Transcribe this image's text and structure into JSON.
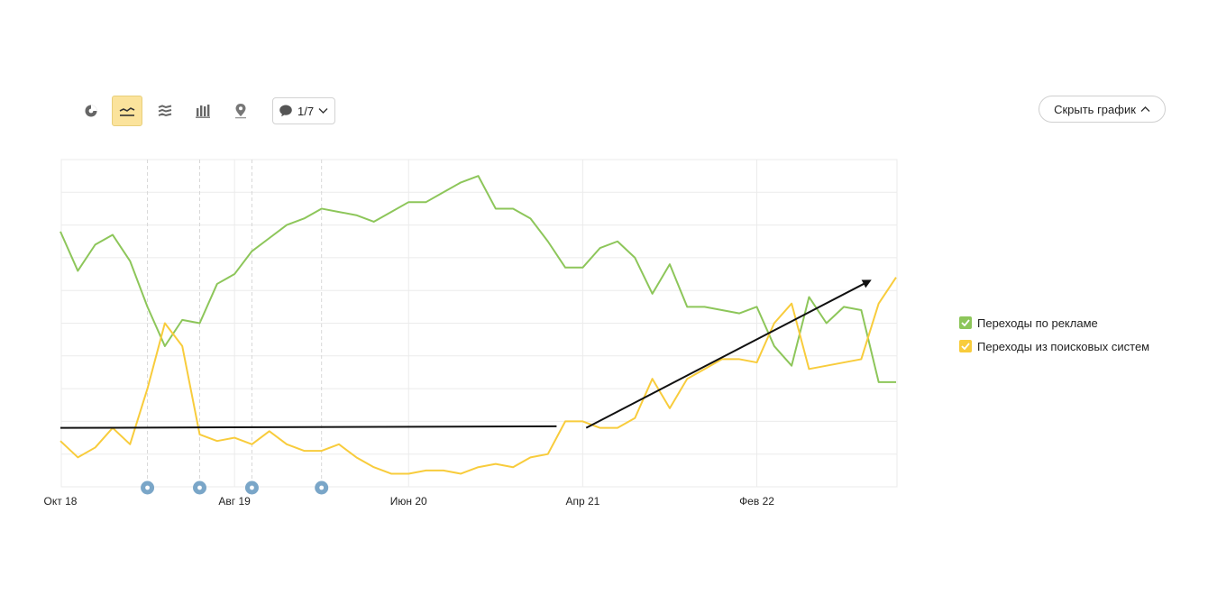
{
  "toolbar": {
    "buttons": [
      {
        "name": "pie-chart-icon",
        "active": false
      },
      {
        "name": "line-chart-icon",
        "active": true
      },
      {
        "name": "area-chart-icon",
        "active": false
      },
      {
        "name": "bar-chart-icon",
        "active": false
      },
      {
        "name": "map-icon",
        "active": false
      }
    ],
    "annotations_label": "1/7"
  },
  "hide_chart_label": "Скрыть график",
  "colors": {
    "green": "#8dc65a",
    "yellow": "#f8cc3c",
    "grid": "#ebebeb",
    "annotation_marker": "#7aa6c8",
    "trend_arrow": "#111111"
  },
  "chart_data": {
    "type": "line",
    "x_tick_labels": [
      "Окт 18",
      "Авг 19",
      "Июн 20",
      "Апр 21",
      "Фев 22"
    ],
    "x_tick_months": [
      0,
      10,
      20,
      30,
      40
    ],
    "x_range": [
      0,
      48
    ],
    "y_range": [
      0,
      10
    ],
    "grid": true,
    "legend_position": "right",
    "annotation_months": [
      5,
      8,
      11,
      15
    ],
    "series": [
      {
        "name": "Переходы по рекламе",
        "color": "#8dc65a",
        "values": [
          7.8,
          6.6,
          7.4,
          7.7,
          6.9,
          5.5,
          4.3,
          5.1,
          5.0,
          6.2,
          6.5,
          7.2,
          7.6,
          8.0,
          8.2,
          8.5,
          8.4,
          8.3,
          8.1,
          8.4,
          8.7,
          8.7,
          9.0,
          9.3,
          9.5,
          8.5,
          8.5,
          8.2,
          7.5,
          6.7,
          6.7,
          7.3,
          7.5,
          7.0,
          5.9,
          6.8,
          5.5,
          5.5,
          5.4,
          5.3,
          5.5,
          4.3,
          3.7,
          5.8,
          5.0,
          5.5,
          5.4,
          3.2,
          3.2
        ]
      },
      {
        "name": "Переходы из поисковых систем",
        "color": "#f8cc3c",
        "values": [
          1.4,
          0.9,
          1.2,
          1.8,
          1.3,
          3.0,
          5.0,
          4.3,
          1.6,
          1.4,
          1.5,
          1.3,
          1.7,
          1.3,
          1.1,
          1.1,
          1.3,
          0.9,
          0.6,
          0.4,
          0.4,
          0.5,
          0.5,
          0.4,
          0.6,
          0.7,
          0.6,
          0.9,
          1.0,
          2.0,
          2.0,
          1.8,
          1.8,
          2.1,
          3.3,
          2.4,
          3.3,
          3.6,
          3.9,
          3.9,
          3.8,
          5.0,
          5.6,
          3.6,
          3.7,
          3.8,
          3.9,
          5.6,
          6.4
        ]
      }
    ],
    "trend_lines": [
      {
        "from": [
          0,
          1.8
        ],
        "to": [
          28.5,
          1.85
        ],
        "arrow": false
      },
      {
        "from": [
          30.2,
          1.8
        ],
        "to": [
          46.5,
          6.3
        ],
        "arrow": true
      }
    ]
  }
}
